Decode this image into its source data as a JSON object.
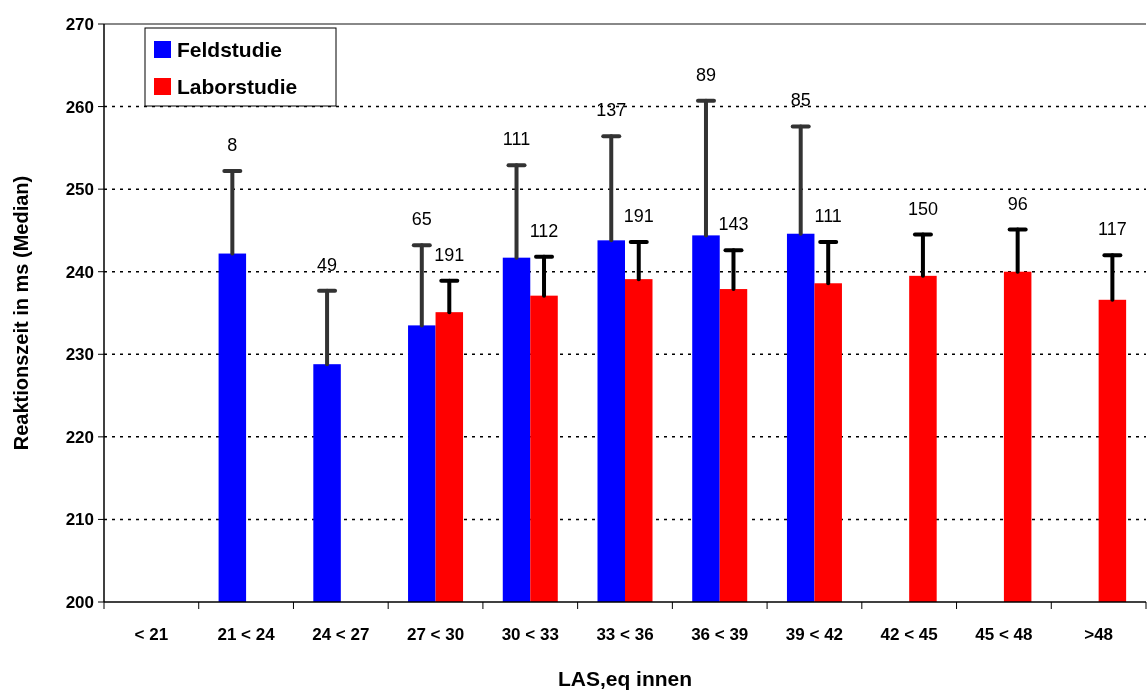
{
  "chart_data": {
    "type": "bar",
    "xlabel": "LAS,eq innen",
    "ylabel": "Reaktionszeit in ms (Median)",
    "categories": [
      "< 21",
      "21 < 24",
      "24 < 27",
      "27 < 30",
      "30 < 33",
      "33 < 36",
      "36 < 39",
      "39 < 42",
      "42 < 45",
      "45 < 48",
      ">48"
    ],
    "series": [
      {
        "name": "Feldstudie",
        "color": "#0000ff",
        "values": [
          null,
          242.2,
          228.8,
          233.5,
          241.7,
          243.8,
          244.4,
          244.6,
          null,
          null,
          null
        ],
        "errors": [
          null,
          [
            242.2,
            252.2
          ],
          [
            228.8,
            237.7
          ],
          [
            233.5,
            243.2
          ],
          [
            241.7,
            252.9
          ],
          [
            243.8,
            256.4
          ],
          [
            244.4,
            260.7
          ],
          [
            244.6,
            257.6
          ],
          null,
          null,
          null
        ]
      },
      {
        "name": "Laborstudie",
        "color": "#ff0000",
        "values": [
          null,
          null,
          null,
          235.1,
          237.1,
          239.1,
          237.9,
          238.6,
          239.5,
          240.0,
          236.6
        ],
        "errors": [
          null,
          null,
          null,
          [
            235.1,
            238.9
          ],
          [
            237.1,
            241.8
          ],
          [
            239.1,
            243.6
          ],
          [
            237.9,
            242.6
          ],
          [
            238.6,
            243.6
          ],
          [
            239.5,
            244.5
          ],
          [
            240.0,
            245.1
          ],
          [
            236.6,
            242.0
          ]
        ]
      }
    ],
    "annotations": [
      "8",
      "49",
      "65",
      "191",
      "111",
      "112",
      "137",
      "191",
      "89",
      "143",
      "85",
      "111",
      "150",
      "96",
      "117"
    ],
    "ylim": [
      200,
      270
    ],
    "yticks": [
      200,
      210,
      220,
      230,
      240,
      250,
      260,
      270
    ],
    "grid": "y",
    "legend": "top left"
  }
}
